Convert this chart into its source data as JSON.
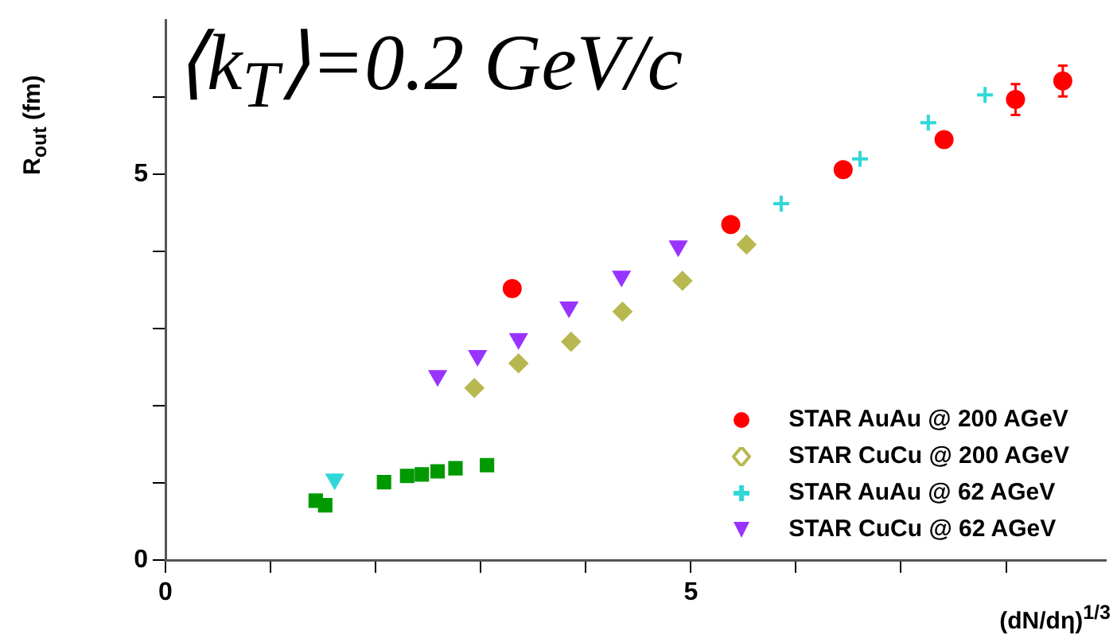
{
  "chart_data": {
    "type": "scatter",
    "xlabel": "(dN/dη)$^{1/3}$",
    "ylabel": "R$_{out}$ (fm)",
    "annotations": [
      "⟨k$_{T}$⟩=0.2 GeV/c"
    ],
    "xlim": [
      0,
      8.95
    ],
    "ylim": [
      0,
      7
    ],
    "xticks": [
      0,
      {
        "value": 1,
        "label": null
      },
      {
        "value": 2,
        "label": null
      },
      {
        "value": 3,
        "label": null
      },
      {
        "value": 4,
        "label": null
      },
      5,
      {
        "value": 6,
        "label": null
      },
      {
        "value": 7,
        "label": null
      },
      {
        "value": 8,
        "label": null
      }
    ],
    "yticks": [
      0,
      {
        "value": 1,
        "label": null
      },
      {
        "value": 2,
        "label": null
      },
      {
        "value": 3,
        "label": null
      },
      {
        "value": 4,
        "label": null
      },
      5,
      {
        "value": 6,
        "label": null
      }
    ],
    "grid": false,
    "legend": "bottom right",
    "series": [
      {
        "name": "STAR AuAu @ 200 AGeV",
        "color": "#ff0000",
        "marker": "circle",
        "x": [
          3.3,
          5.38,
          6.45,
          7.41,
          8.09,
          8.54
        ],
        "values": [
          3.52,
          4.35,
          5.06,
          5.45,
          5.97,
          6.21
        ],
        "errors": [
          null,
          null,
          null,
          null,
          0.2,
          0.2
        ]
      },
      {
        "name": "STAR CuCu @ 200 AGeV",
        "color": "#b8b850",
        "marker": "diamond",
        "x": [
          2.94,
          3.36,
          3.86,
          4.35,
          4.92,
          5.53
        ],
        "values": [
          2.23,
          2.55,
          2.83,
          3.22,
          3.62,
          4.09
        ]
      },
      {
        "name": "STAR AuAu @ 62 AGeV",
        "color": "#30d8d8",
        "marker": "cross",
        "x": [
          5.86,
          6.61,
          7.26,
          7.8
        ],
        "values": [
          4.62,
          5.2,
          5.67,
          6.03
        ]
      },
      {
        "name": "STAR CuCu @ 62 AGeV",
        "color": "#9933ff",
        "marker": "triangle",
        "x": [
          2.59,
          2.97,
          3.36,
          3.84,
          4.34,
          4.88
        ],
        "values": [
          2.39,
          2.65,
          2.87,
          3.28,
          3.68,
          4.07
        ]
      },
      {
        "color": "#009900",
        "marker": "square",
        "x": [
          1.52,
          2.08,
          2.3,
          2.44,
          2.59,
          2.76,
          3.06
        ],
        "values": [
          0.71,
          1.01,
          1.09,
          1.11,
          1.15,
          1.19,
          1.23
        ]
      },
      {
        "color": "#009900",
        "marker": "square",
        "x": [
          1.43
        ],
        "values": [
          0.77
        ]
      },
      {
        "color": "#30d8d8",
        "marker": "triangle",
        "x": [
          1.61
        ],
        "values": [
          1.05
        ]
      }
    ]
  }
}
